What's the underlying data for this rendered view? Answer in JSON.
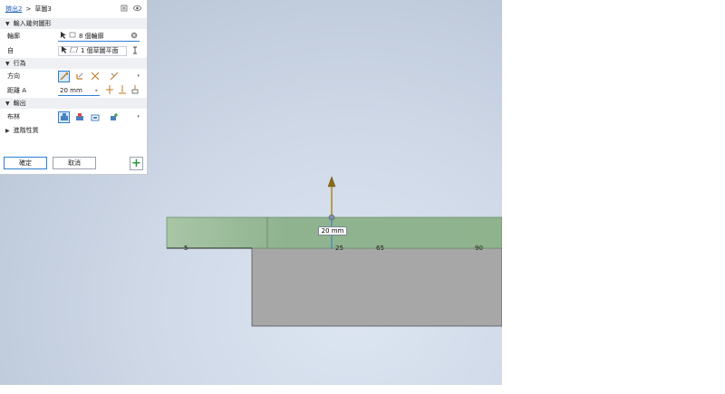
{
  "breadcrumb": {
    "parent": "擠出2",
    "sep": ">",
    "current": "草圖3"
  },
  "sections": {
    "input": "輸入幾何圖形",
    "behavior": "行為",
    "output": "輸出",
    "advanced": "進階性質"
  },
  "rows": {
    "profile_label": "輪廓",
    "profile_value": "8 個輪廓",
    "face_label": "自",
    "face_value": "1 個草圖平面",
    "direction_label": "方向",
    "distance_label": "距離 A",
    "distance_value": "20 mm",
    "solid_label": "布林"
  },
  "footer": {
    "ok": "確定",
    "cancel": "取消",
    "plus": "+"
  },
  "viewport": {
    "dimension": "20 mm",
    "ruler_ticks": [
      "5",
      "25",
      "65",
      "90"
    ]
  },
  "colors": {
    "accent": "#2d7fd3",
    "preview_green": "#8fb38f",
    "part_gray": "#a8a8a8",
    "arrow": "#b08a2a"
  },
  "icons": [
    "cursor-icon",
    "profile-icon",
    "plane-icon",
    "reset-icon",
    "eye-icon",
    "copy-icon",
    "measure-icon"
  ]
}
